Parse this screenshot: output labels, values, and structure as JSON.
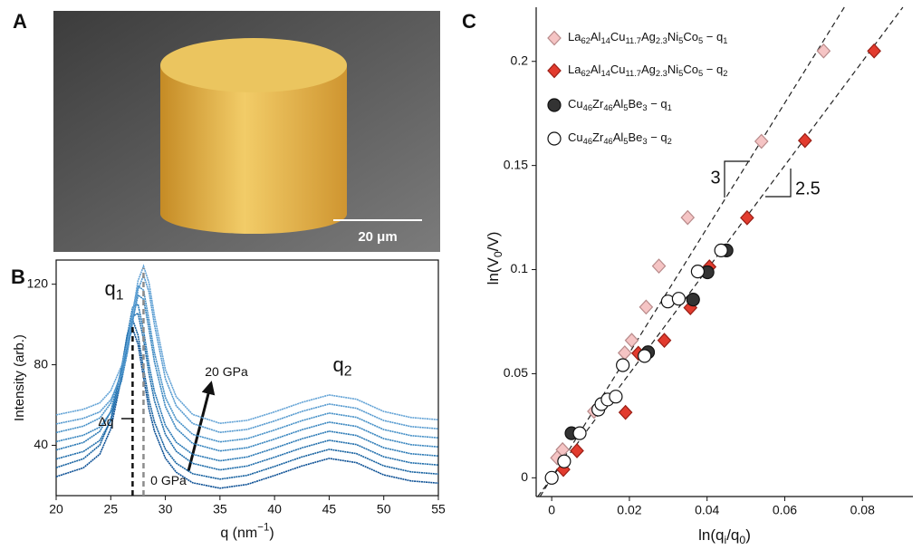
{
  "figure": {
    "panel_labels": [
      "A",
      "B",
      "C"
    ],
    "scale_bar_label": "20 μm"
  },
  "chart_data": [
    {
      "type": "line",
      "x_label": "q (nm−1)",
      "y_label": "Intensity (arb.)",
      "xlim": [
        20,
        55
      ],
      "ylim": [
        15,
        132
      ],
      "xticks": [
        20,
        25,
        30,
        35,
        40,
        45,
        50,
        55
      ],
      "yticks": [
        40,
        80,
        120
      ],
      "x": [
        20,
        22.5,
        24,
        25,
        26,
        26.5,
        27,
        27.5,
        28,
        28.5,
        29,
        30,
        31,
        32.5,
        35,
        37.5,
        40,
        42.5,
        45,
        47.5,
        50,
        52.5,
        55
      ],
      "series": [
        {
          "color": "#0b4f94",
          "values": [
            24.4,
            28.8,
            35.6,
            48.1,
            74.0,
            90.2,
            98,
            90.2,
            73.5,
            58,
            47.1,
            33.6,
            26.6,
            21.4,
            18.7,
            20.6,
            25,
            29.7,
            33.5,
            31.4,
            25.3,
            22.3,
            21.2
          ]
        },
        {
          "color": "#14609f",
          "values": [
            28.9,
            33.3,
            40.1,
            52.6,
            78.5,
            94.7,
            102.5,
            94.7,
            78,
            62.5,
            51.6,
            38.1,
            31.1,
            25.9,
            23.2,
            25.1,
            29.5,
            34.2,
            38,
            35.9,
            29.8,
            26.8,
            25.7
          ]
        },
        {
          "color": "#1f6dab",
          "values": [
            33.2,
            36.9,
            42.4,
            52.3,
            73.5,
            89.7,
            104,
            105.6,
            92.5,
            75.6,
            62.2,
            45.4,
            37,
            31,
            27.8,
            29.7,
            34.1,
            38.7,
            42.5,
            40.4,
            34.3,
            31.3,
            30.2
          ]
        },
        {
          "color": "#2a79b5",
          "values": [
            37.7,
            41.4,
            46.9,
            56.8,
            78,
            94.2,
            108.5,
            110.1,
            97,
            80.1,
            66.7,
            49.9,
            41.5,
            35.5,
            32.3,
            34.2,
            38.6,
            43.2,
            47,
            44.9,
            38.8,
            35.8,
            34.7
          ]
        },
        {
          "color": "#3785bf",
          "values": [
            41.8,
            45,
            49,
            56.4,
            72.2,
            85.6,
            102,
            114.6,
            112.5,
            97.7,
            81.5,
            59.3,
            48.4,
            40.9,
            37.2,
            38.8,
            43.1,
            47.7,
            51.5,
            49.4,
            43.3,
            40.3,
            39.2
          ]
        },
        {
          "color": "#4590c7",
          "values": [
            46.3,
            49.5,
            53.5,
            60.9,
            76.7,
            90.1,
            106.5,
            119.1,
            117,
            102.2,
            86,
            63.8,
            52.9,
            45.4,
            41.7,
            43.3,
            47.6,
            52.2,
            56,
            53.9,
            47.8,
            44.8,
            43.7
          ]
        },
        {
          "color": "#5499cf",
          "values": [
            50.6,
            53.4,
            56.6,
            62.6,
            75.1,
            86,
            101,
            117.2,
            124.5,
            116.2,
            100,
            73.1,
            59.6,
            50.8,
            46.4,
            47.9,
            52.1,
            56.8,
            60.5,
            58.4,
            52.3,
            49.3,
            48.2
          ]
        },
        {
          "color": "#63a3d6",
          "values": [
            55.1,
            57.9,
            61.1,
            67.1,
            79.6,
            90.5,
            105.5,
            121.7,
            129,
            120.7,
            104.5,
            77.6,
            64.1,
            55.3,
            50.9,
            52.4,
            56.6,
            61.3,
            65,
            62.9,
            56.8,
            53.8,
            52.7
          ]
        }
      ],
      "peak_lines": [
        {
          "x": 27,
          "y": 100,
          "color": "#111111"
        },
        {
          "x": 28,
          "y": 128,
          "color": "#8c8c8c"
        }
      ],
      "annotations": [
        "q1",
        "q2",
        "20 GPa",
        "0 GPa",
        "Δq"
      ]
    },
    {
      "type": "scatter",
      "x_label": "ln(qi/q0)",
      "y_label": "ln(V0/V)",
      "xlim": [
        -0.004,
        0.093
      ],
      "ylim": [
        -0.009,
        0.226
      ],
      "xticks": [
        0,
        0.02,
        0.04,
        0.06,
        0.08
      ],
      "yticks": [
        0,
        0.05,
        0.1,
        0.15,
        0.2
      ],
      "legend": "upper left",
      "series": [
        {
          "name": "La62Al14Cu11.7Ag2.3Ni5Co5 − q1",
          "marker": "diamond",
          "color": "#f5c4c4",
          "edgecolor": "#b88a8a",
          "x": [
            0.0014,
            0.0028,
            0.0109,
            0.0188,
            0.0206,
            0.0243,
            0.0276,
            0.035,
            0.054,
            0.07
          ],
          "y": [
            0.0096,
            0.0135,
            0.0319,
            0.06,
            0.066,
            0.082,
            0.1017,
            0.125,
            0.1616,
            0.205
          ]
        },
        {
          "name": "La62Al14Cu11.7Ag2.3Ni5Co5 − q2",
          "marker": "diamond",
          "color": "#e23b2e",
          "edgecolor": "#9a1f16",
          "x": [
            0.003,
            0.0065,
            0.019,
            0.0223,
            0.029,
            0.0357,
            0.0406,
            0.0503,
            0.0652,
            0.083
          ],
          "y": [
            0.004,
            0.013,
            0.0314,
            0.0598,
            0.066,
            0.0817,
            0.1013,
            0.1249,
            0.162,
            0.205
          ]
        },
        {
          "name": "Cu46Zr46Al5Be3 − q1",
          "marker": "circle",
          "color": "#333333",
          "edgecolor": "#111111",
          "x": [
            0.0051,
            0.0248,
            0.0364,
            0.0401,
            0.045
          ],
          "y": [
            0.0214,
            0.0603,
            0.0856,
            0.0987,
            0.1092
          ]
        },
        {
          "name": "Cu46Zr46Al5Be3 − q2",
          "marker": "circle",
          "color": "#ffffff",
          "edgecolor": "#111111",
          "x": [
            0,
            0.0032,
            0.0072,
            0.012,
            0.0128,
            0.0144,
            0.0165,
            0.0183,
            0.0239,
            0.0299,
            0.0327,
            0.0376,
            0.0436
          ],
          "y": [
            0,
            0.0079,
            0.0214,
            0.0328,
            0.0354,
            0.0376,
            0.039,
            0.0541,
            0.0585,
            0.0847,
            0.086,
            0.0991,
            0.1092
          ]
        }
      ],
      "fit_lines": [
        {
          "slope": 3
        },
        {
          "slope": 2.5
        }
      ]
    }
  ]
}
